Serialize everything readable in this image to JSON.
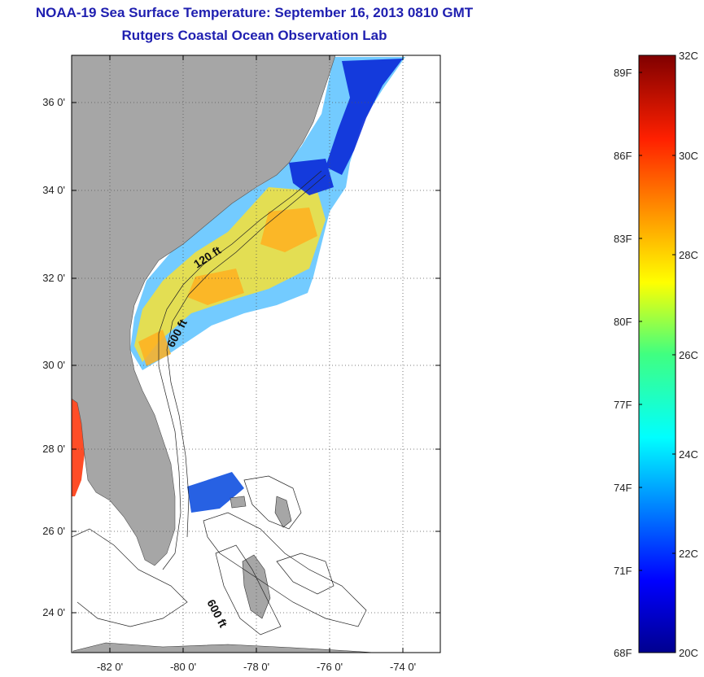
{
  "title_line1": "NOAA-19 Sea Surface Temperature:  September 16, 2013 0810 GMT",
  "title_line2": "Rutgers Coastal Ocean Observation Lab",
  "y_ticks": [
    "36 0'",
    "34 0'",
    "32 0'",
    "30 0'",
    "28 0'",
    "26 0'",
    "24 0'"
  ],
  "x_ticks": [
    "-82 0'",
    "-80 0'",
    "-78 0'",
    "-76 0'",
    "-74 0'"
  ],
  "contour_labels": {
    "c1": "120 ft",
    "c2": "600 ft",
    "c3": "600 ft"
  },
  "colorbar": {
    "celsius_labels": [
      "32C",
      "30C",
      "28C",
      "26C",
      "24C",
      "22C",
      "20C"
    ],
    "fahrenheit_labels": [
      "89F",
      "86F",
      "83F",
      "80F",
      "77F",
      "74F",
      "71F",
      "68F"
    ],
    "colors": {
      "land": "#a6a6a6",
      "warm": "#c00000",
      "cold": "#0000a0"
    }
  }
}
